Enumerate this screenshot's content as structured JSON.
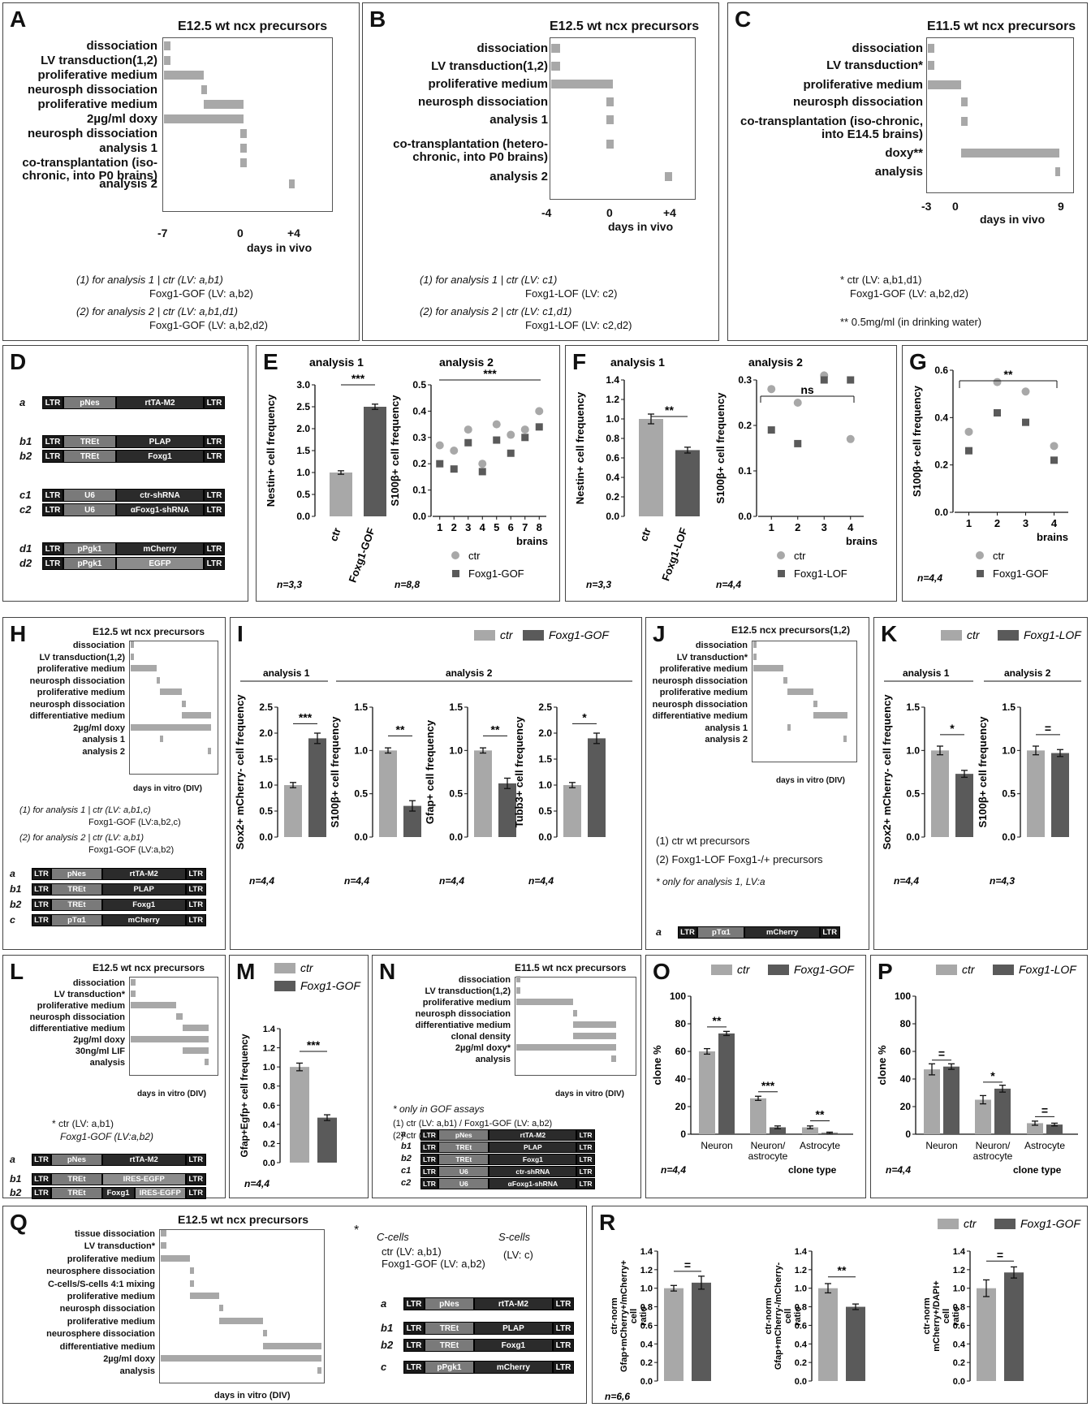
{
  "figure": {
    "A": {
      "letter": "A",
      "title": "E12.5 wt ncx precursors",
      "steps": [
        "dissociation",
        "LV transduction(1,2)",
        "proliferative medium",
        "neurosph dissociation",
        "proliferative medium",
        "2µg/ml doxy",
        "neurosph dissociation",
        "analysis 1",
        "co-transplantation (iso-chronic, into P0 brains)",
        "analysis 2"
      ],
      "ticks": [
        "-7",
        "0",
        "+4"
      ],
      "xlabel": "days in vivo",
      "notes": [
        "(1) for analysis 1 | ctr (LV: a,b1)",
        "Foxg1-GOF (LV: a,b2)",
        "(2) for analysis 2 | ctr (LV: a,b1,d1)",
        "Foxg1-GOF (LV: a,b2,d2)"
      ]
    },
    "B": {
      "letter": "B",
      "title": "E12.5 wt ncx precursors",
      "steps": [
        "dissociation",
        "LV transduction(1,2)",
        "proliferative medium",
        "neurosph dissociation",
        "analysis 1",
        "co-transplantation (hetero-chronic, into P0 brains)",
        "analysis 2"
      ],
      "ticks": [
        "-4",
        "0",
        "+4"
      ],
      "xlabel": "days in vivo",
      "notes": [
        "(1) for analysis 1 | ctr (LV: c1)",
        "Foxg1-LOF (LV: c2)",
        "(2) for analysis 2 | ctr (LV: c1,d1)",
        "Foxg1-LOF (LV: c2,d2)"
      ]
    },
    "C": {
      "letter": "C",
      "title": "E11.5 wt ncx precursors",
      "steps": [
        "dissociation",
        "LV transduction*",
        "proliferative medium",
        "neurosph dissociation",
        "co-transplantation (iso-chronic, into E14.5 brains)",
        "doxy**",
        "analysis"
      ],
      "ticks": [
        "-3",
        "0",
        "9"
      ],
      "xlabel": "days in vivo",
      "notes": [
        "* ctr (LV: a,b1,d1)",
        "Foxg1-GOF (LV: a,b2,d2)",
        "** 0.5mg/ml (in drinking water)"
      ]
    },
    "E": {
      "letter": "E",
      "sub1": "analysis 1",
      "sub2": "analysis 2",
      "ylab1": "Nestin+ cell frequency",
      "ylab2": "S100β+ cell frequency",
      "n1": "n=3,3",
      "n2": "n=8,8",
      "sig1": "***",
      "sig2": "***",
      "xlab": "brains",
      "cats": [
        "ctr",
        "Foxg1-GOF"
      ],
      "legend": [
        "ctr",
        "Foxg1-GOF"
      ]
    },
    "F": {
      "letter": "F",
      "sub1": "analysis 1",
      "sub2": "analysis 2",
      "ylab1": "Nestin+ cell frequency",
      "ylab2": "S100β+ cell frequency",
      "n1": "n=3,3",
      "n2": "n=4,4",
      "sig1": "**",
      "sig2": "ns",
      "xlab": "brains",
      "cats": [
        "ctr",
        "Foxg1-LOF"
      ],
      "legend": [
        "ctr",
        "Foxg1-LOF"
      ]
    },
    "G": {
      "letter": "G",
      "ylab": "S100β+ cell frequency",
      "n": "n=4,4",
      "sig": "**",
      "xlab": "brains",
      "legend": [
        "ctr",
        "Foxg1-GOF"
      ]
    },
    "H": {
      "letter": "H",
      "title": "E12.5 wt ncx precursors",
      "steps": [
        "dissociation",
        "LV transduction(1,2)",
        "proliferative medium",
        "neurosph dissociation",
        "proliferative medium",
        "neurosph dissociation",
        "differentiative medium",
        "2µg/ml doxy",
        "analysis 1",
        "analysis 2"
      ],
      "ticks": [
        "0",
        "4",
        "7",
        "11"
      ],
      "xlabel": "days in vitro (DIV)",
      "notes": [
        "(1) for analysis 1 | ctr (LV: a,b1,c)",
        "Foxg1-GOF (LV:a,b2,c)",
        "(2) for analysis 2 | ctr (LV: a,b1)",
        "Foxg1-GOF (LV:a,b2)"
      ]
    },
    "I": {
      "letter": "I",
      "legend": [
        "ctr",
        "Foxg1-GOF"
      ],
      "g1": "analysis 1",
      "g2": "analysis 2",
      "ylabs": [
        "Sox2+ mCherry- cell frequency",
        "S100β+ cell frequency",
        "Gfap+ cell frequency",
        "Tubb3+ cell frequency"
      ],
      "sigs": [
        "***",
        "**",
        "**",
        "*"
      ],
      "ns": [
        "n=4,4",
        "n=4,4",
        "n=4,4",
        "n=4,4"
      ]
    },
    "J": {
      "letter": "J",
      "title": "E12.5 ncx precursors(1,2)",
      "steps": [
        "dissociation",
        "LV transduction*",
        "proliferative medium",
        "neurosph dissociation",
        "proliferative medium",
        "neurosph dissociation",
        "differentiative medium",
        "analysis 1",
        "analysis 2"
      ],
      "ticks": [
        "0",
        "4",
        "7",
        "11"
      ],
      "xlabel": "days in vitro (DIV)",
      "notes": [
        "(1) ctr   wt precursors",
        "(2) Foxg1-LOF   Foxg1-/+ precursors",
        "* only for analysis 1, LV:a"
      ]
    },
    "K": {
      "letter": "K",
      "legend": [
        "ctr",
        "Foxg1-LOF"
      ],
      "g1": "analysis 1",
      "g2": "analysis 2",
      "ylabs": [
        "Sox2+ mCherry- cell frequency",
        "S100β+ cell frequency"
      ],
      "sigs": [
        "*",
        "="
      ],
      "ns": [
        "n=4,4",
        "n=4,3"
      ]
    },
    "L": {
      "letter": "L",
      "title": "E12.5 wt ncx precursors",
      "steps": [
        "dissociation",
        "LV transduction*",
        "proliferative medium",
        "neurosph dissociation",
        "differentiative medium",
        "2µg/ml doxy",
        "30ng/ml LIF",
        "analysis"
      ],
      "ticks": [
        "0",
        "4",
        "6"
      ],
      "xlabel": "days in vitro (DIV)",
      "notes": [
        "* ctr (LV: a,b1)",
        "Foxg1-GOF (LV:a,b2)"
      ]
    },
    "M": {
      "letter": "M",
      "legend": [
        "ctr",
        "Foxg1-GOF"
      ],
      "ylab": "Gfap+Egfp+ cell frequency",
      "sig": "***",
      "n": "n=4,4"
    },
    "N": {
      "letter": "N",
      "title": "E11.5 wt ncx precursors",
      "steps": [
        "dissociation",
        "LV transduction(1,2)",
        "proliferative medium",
        "neurosph dissociation",
        "differentiative medium",
        "clonal density",
        "2µg/ml doxy*",
        "analysis"
      ],
      "ticks": [
        "0",
        "4",
        "7"
      ],
      "xlabel": "days in vitro (DIV)",
      "notes": [
        "* only in GOF assays",
        "(1) ctr (LV: a,b1) / Foxg1-GOF (LV: a,b2)",
        "(2) ctr (LV: c1) / Foxg1-LOF (LV: c2)"
      ]
    },
    "O": {
      "letter": "O",
      "legend": [
        "ctr",
        "Foxg1-GOF"
      ],
      "ylab": "clone %",
      "xlab": "clone type",
      "n": "n=4,4",
      "sigs": [
        "**",
        "***",
        "**"
      ],
      "cats": [
        "Neuron",
        "Neuron/ astrocyte",
        "Astrocyte"
      ]
    },
    "P": {
      "letter": "P",
      "legend": [
        "ctr",
        "Foxg1-LOF"
      ],
      "ylab": "clone %",
      "xlab": "clone type",
      "n": "n=4,4",
      "sigs": [
        "=",
        "*",
        "="
      ],
      "cats": [
        "Neuron",
        "Neuron/ astrocyte",
        "Astrocyte"
      ]
    },
    "Q": {
      "letter": "Q",
      "title": "E12.5 wt ncx precursors",
      "steps": [
        "tissue dissociation",
        "LV transduction*",
        "proliferative medium",
        "neurosphere dissociation",
        "C-cells/S-cells 4:1 mixing",
        "proliferative medium",
        "neurosph dissociation",
        "proliferative medium",
        "neurosphere dissociation",
        "differentiative medium",
        "2µg/ml doxy",
        "analysis"
      ],
      "ticks": [
        "0",
        "2",
        "4",
        "7",
        "11"
      ],
      "xlabel": "days in vitro (DIV)",
      "notes": [
        "C-cells",
        "ctr (LV: a,b1)",
        "Foxg1-GOF (LV: a,b2)",
        "S-cells",
        "(LV: c)"
      ]
    },
    "R": {
      "letter": "R",
      "legend": [
        "ctr",
        "Foxg1-GOF"
      ],
      "ylabs": [
        "ctr-norm Gfap+mCherry+/mCherry+ cell ratio",
        "ctr-norm Gfap+mCherry-/mCherry- cell ratio",
        "ctr-norm mCherry+/DAPI+ cell ratio"
      ],
      "sigs": [
        "=",
        "**",
        "="
      ],
      "n": "n=6,6"
    }
  },
  "constructs": {
    "a": {
      "name": "a",
      "parts": [
        "LTR",
        "pNes",
        "rtTA-M2",
        "LTR"
      ]
    },
    "b1": {
      "name": "b1",
      "parts": [
        "LTR",
        "TREt",
        "PLAP",
        "LTR"
      ]
    },
    "b2": {
      "name": "b2",
      "parts": [
        "LTR",
        "TREt",
        "Foxg1",
        "LTR"
      ]
    },
    "c1": {
      "name": "c1",
      "parts": [
        "LTR",
        "U6",
        "ctr-shRNA",
        "LTR"
      ]
    },
    "c2": {
      "name": "c2",
      "parts": [
        "LTR",
        "U6",
        "αFoxg1-shRNA",
        "LTR"
      ]
    },
    "d1": {
      "name": "d1",
      "parts": [
        "LTR",
        "pPgk1",
        "mCherry",
        "LTR"
      ]
    },
    "d2": {
      "name": "d2",
      "parts": [
        "LTR",
        "pPgk1",
        "EGFP",
        "LTR"
      ]
    },
    "c_ptal": {
      "name": "c",
      "parts": [
        "LTR",
        "pTα1",
        "mCherry",
        "LTR"
      ]
    },
    "a_ptal": {
      "name": "a",
      "parts": [
        "LTR",
        "pTα1",
        "mCherry",
        "LTR"
      ]
    },
    "b1_ires": {
      "name": "b1",
      "parts": [
        "LTR",
        "TREt",
        "IRES-EGFP",
        "LTR"
      ]
    },
    "b2_ires": {
      "name": "b2",
      "parts": [
        "LTR",
        "TREt",
        "Foxg1",
        "IRES-EGFP",
        "LTR"
      ]
    },
    "c_pgk": {
      "name": "c",
      "parts": [
        "LTR",
        "pPgk1",
        "mCherry",
        "LTR"
      ]
    }
  },
  "chart_data": [
    {
      "panel": "E",
      "type": "bar",
      "title": "analysis 1",
      "categories": [
        "ctr",
        "Foxg1-GOF"
      ],
      "values": [
        1.0,
        2.5
      ],
      "ylim": [
        0,
        3.0
      ],
      "ylabel": "Nestin+ cell frequency"
    },
    {
      "panel": "E",
      "type": "scatter",
      "title": "analysis 2",
      "x": [
        1,
        2,
        3,
        4,
        5,
        6,
        7,
        8
      ],
      "series": [
        {
          "name": "ctr",
          "values": [
            0.27,
            0.25,
            0.33,
            0.2,
            0.35,
            0.31,
            0.33,
            0.4
          ]
        },
        {
          "name": "Foxg1-GOF",
          "values": [
            0.2,
            0.18,
            0.28,
            0.17,
            0.29,
            0.24,
            0.3,
            0.34
          ]
        }
      ],
      "ylim": [
        0,
        0.5
      ],
      "ylabel": "S100β+ cell frequency",
      "xlabel": "brains"
    },
    {
      "panel": "F",
      "type": "bar",
      "title": "analysis 1",
      "categories": [
        "ctr",
        "Foxg1-LOF"
      ],
      "values": [
        1.0,
        0.68
      ],
      "ylim": [
        0,
        1.4
      ],
      "ylabel": "Nestin+ cell frequency"
    },
    {
      "panel": "F",
      "type": "scatter",
      "title": "analysis 2",
      "x": [
        1,
        2,
        3,
        4
      ],
      "series": [
        {
          "name": "ctr",
          "values": [
            0.28,
            0.25,
            0.31,
            0.17
          ]
        },
        {
          "name": "Foxg1-LOF",
          "values": [
            0.19,
            0.16,
            0.3,
            0.3
          ]
        }
      ],
      "ylim": [
        0,
        0.3
      ],
      "ylabel": "S100β+ cell frequency",
      "xlabel": "brains"
    },
    {
      "panel": "G",
      "type": "scatter",
      "x": [
        1,
        2,
        3,
        4
      ],
      "series": [
        {
          "name": "ctr",
          "values": [
            0.34,
            0.55,
            0.51,
            0.28
          ]
        },
        {
          "name": "Foxg1-GOF",
          "values": [
            0.26,
            0.42,
            0.38,
            0.22
          ]
        }
      ],
      "ylim": [
        0,
        0.6
      ],
      "ylabel": "S100β+ cell frequency",
      "xlabel": "brains"
    },
    {
      "panel": "I",
      "type": "bar",
      "categories": [
        "Sox2+mCherry-",
        "S100β+",
        "Gfap+",
        "Tubb3+"
      ],
      "series": [
        {
          "name": "ctr",
          "values": [
            1.0,
            1.0,
            1.0,
            1.0
          ]
        },
        {
          "name": "Foxg1-GOF",
          "values": [
            1.9,
            0.36,
            0.62,
            1.9
          ]
        }
      ],
      "ylims": [
        [
          0,
          2.5
        ],
        [
          0,
          1.5
        ],
        [
          0,
          1.5
        ],
        [
          0,
          2.5
        ]
      ]
    },
    {
      "panel": "K",
      "type": "bar",
      "categories": [
        "Sox2+mCherry-",
        "S100β+"
      ],
      "series": [
        {
          "name": "ctr",
          "values": [
            1.0,
            1.0
          ]
        },
        {
          "name": "Foxg1-LOF",
          "values": [
            0.73,
            0.97
          ]
        }
      ],
      "ylim": [
        0,
        1.5
      ]
    },
    {
      "panel": "M",
      "type": "bar",
      "categories": [
        "ctr",
        "Foxg1-GOF"
      ],
      "values": [
        1.0,
        0.47
      ],
      "ylim": [
        0,
        1.4
      ],
      "ylabel": "Gfap+Egfp+ cell frequency"
    },
    {
      "panel": "O",
      "type": "bar",
      "categories": [
        "Neuron",
        "Neuron/ astrocyte",
        "Astrocyte"
      ],
      "series": [
        {
          "name": "ctr",
          "values": [
            60,
            26,
            5
          ]
        },
        {
          "name": "Foxg1-GOF",
          "values": [
            73,
            5,
            1
          ]
        }
      ],
      "ylim": [
        0,
        100
      ],
      "ylabel": "clone %",
      "xlabel": "clone type"
    },
    {
      "panel": "P",
      "type": "bar",
      "categories": [
        "Neuron",
        "Neuron/ astrocyte",
        "Astrocyte"
      ],
      "series": [
        {
          "name": "ctr",
          "values": [
            47,
            25,
            8
          ]
        },
        {
          "name": "Foxg1-LOF",
          "values": [
            49,
            33,
            7
          ]
        }
      ],
      "ylim": [
        0,
        100
      ],
      "ylabel": "clone %",
      "xlabel": "clone type"
    },
    {
      "panel": "R",
      "type": "bar",
      "categories": [
        "Gfap+mCherry+/mCherry+",
        "Gfap+mCherry-/mCherry-",
        "mCherry+/DAPI+"
      ],
      "series": [
        {
          "name": "ctr",
          "values": [
            1.0,
            1.0,
            1.0
          ]
        },
        {
          "name": "Foxg1-GOF",
          "values": [
            1.06,
            0.8,
            1.17
          ]
        }
      ],
      "ylim": [
        0,
        1.4
      ]
    }
  ],
  "colors": {
    "light": "#a8a8a8",
    "dark": "#5a5a5a",
    "text": "#111111"
  }
}
